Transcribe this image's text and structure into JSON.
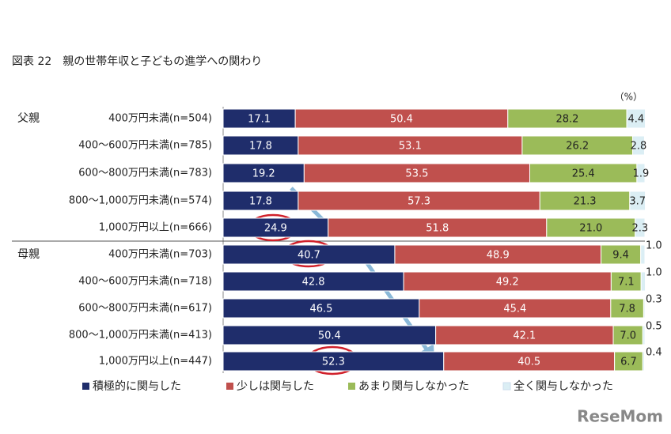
{
  "chart_data": {
    "type": "stacked-bar-horizontal",
    "title": "図表 22　親の世帯年収と子どもの進学への関わり",
    "unit_label": "（%）",
    "groups": [
      {
        "name": "父親",
        "categories": [
          "400万円未満(n=504)",
          "400～600万円未満(n=785)",
          "600～800万円未満(n=783)",
          "800～1,000万円未満(n=574)",
          "1,000万円以上(n=666)"
        ]
      },
      {
        "name": "母親",
        "categories": [
          "400万円未満(n=703)",
          "400～600万円未満(n=718)",
          "600～800万円未満(n=617)",
          "800～1,000万円未満(n=413)",
          "1,000万円以上(n=447)"
        ]
      }
    ],
    "xlim": [
      0,
      100
    ],
    "series": [
      {
        "name": "積極的に関与した",
        "color": "#1f2d6b",
        "values": [
          17.1,
          17.8,
          19.2,
          17.8,
          24.9,
          40.7,
          42.8,
          46.5,
          50.4,
          52.3
        ],
        "value_labels": [
          "17.1",
          "17.8",
          "19.2",
          "17.8",
          "24.9",
          "40.7",
          "42.8",
          "46.5",
          "50.4",
          "52.3"
        ]
      },
      {
        "name": "少しは関与した",
        "color": "#c0504d",
        "values": [
          50.4,
          53.1,
          53.5,
          57.3,
          51.8,
          48.9,
          49.2,
          45.4,
          42.1,
          40.5
        ],
        "value_labels": [
          "50.4",
          "53.1",
          "53.5",
          "57.3",
          "51.8",
          "48.9",
          "49.2",
          "45.4",
          "42.1",
          "40.5"
        ]
      },
      {
        "name": "あまり関与しなかった",
        "color": "#9bbb59",
        "values": [
          28.2,
          26.2,
          25.4,
          21.3,
          21.0,
          9.4,
          7.1,
          7.8,
          7.0,
          6.7
        ],
        "value_labels": [
          "28.2",
          "26.2",
          "25.4",
          "21.3",
          "21.0",
          "9.4",
          "7.1",
          "7.8",
          "7.0",
          "6.7"
        ]
      },
      {
        "name": "全く関与しなかった",
        "color": "#dbeef4",
        "values": [
          4.4,
          2.8,
          1.9,
          3.7,
          2.3,
          1.0,
          1.0,
          0.3,
          0.5,
          0.4
        ],
        "value_labels": [
          "4.4",
          "2.8",
          "1.9",
          "3.7",
          "2.3",
          "1.0",
          "1.0",
          "0.3",
          "0.5",
          "0.4"
        ]
      }
    ],
    "watermark": "ReseMom"
  }
}
